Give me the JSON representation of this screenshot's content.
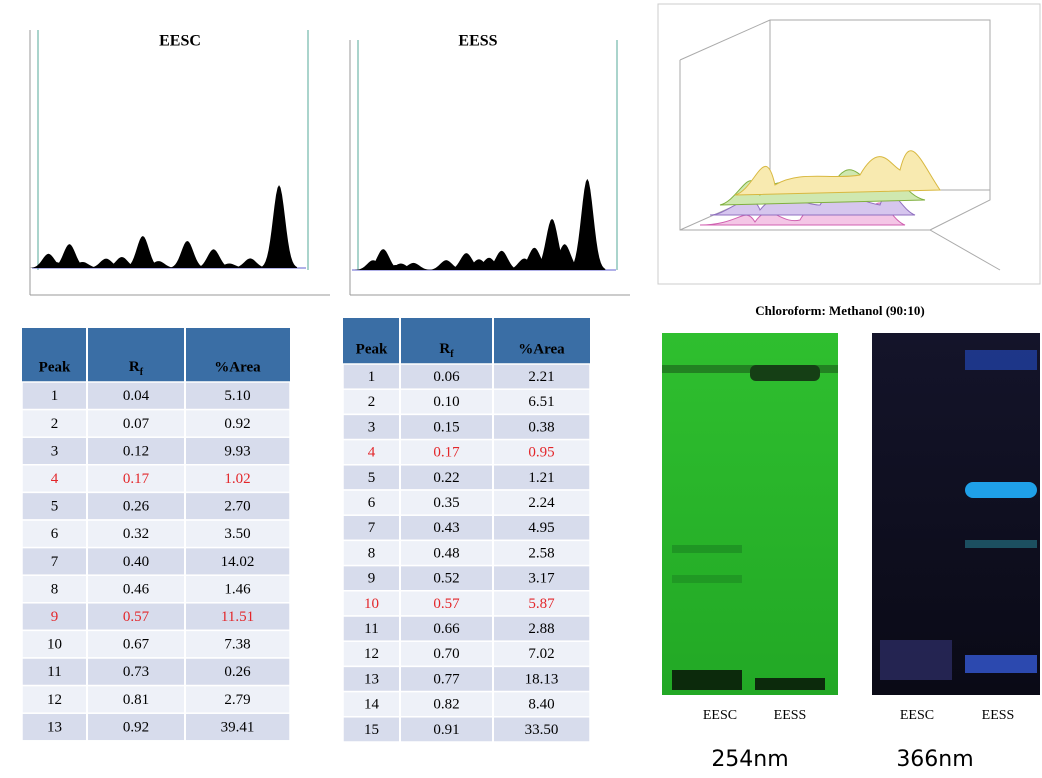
{
  "eesc": {
    "title": "EESC",
    "header": [
      "Peak",
      "R",
      "f",
      "%Area"
    ],
    "highlight_color": "#e3262a",
    "highlight_peaks": [
      "4",
      "9"
    ],
    "rows": [
      [
        "1",
        "0.04",
        "5.10"
      ],
      [
        "2",
        "0.07",
        "0.92"
      ],
      [
        "3",
        "0.12",
        "9.93"
      ],
      [
        "4",
        "0.17",
        "1.02"
      ],
      [
        "5",
        "0.26",
        "2.70"
      ],
      [
        "6",
        "0.32",
        "3.50"
      ],
      [
        "7",
        "0.40",
        "14.02"
      ],
      [
        "8",
        "0.46",
        "1.46"
      ],
      [
        "9",
        "0.57",
        "11.51"
      ],
      [
        "10",
        "0.67",
        "7.38"
      ],
      [
        "11",
        "0.73",
        "0.26"
      ],
      [
        "12",
        "0.81",
        "2.79"
      ],
      [
        "13",
        "0.92",
        "39.41"
      ]
    ]
  },
  "eess": {
    "title": "EESS",
    "header": [
      "Peak",
      "R",
      "f",
      "%Area"
    ],
    "highlight_color": "#e3262a",
    "highlight_peaks": [
      "4",
      "10"
    ],
    "rows": [
      [
        "1",
        "0.06",
        "2.21"
      ],
      [
        "2",
        "0.10",
        "6.51"
      ],
      [
        "3",
        "0.15",
        "0.38"
      ],
      [
        "4",
        "0.17",
        "0.95"
      ],
      [
        "5",
        "0.22",
        "1.21"
      ],
      [
        "6",
        "0.35",
        "2.24"
      ],
      [
        "7",
        "0.43",
        "4.95"
      ],
      [
        "8",
        "0.48",
        "2.58"
      ],
      [
        "9",
        "0.52",
        "3.17"
      ],
      [
        "10",
        "0.57",
        "5.87"
      ],
      [
        "11",
        "0.66",
        "2.88"
      ],
      [
        "12",
        "0.70",
        "7.02"
      ],
      [
        "13",
        "0.77",
        "18.13"
      ],
      [
        "14",
        "0.82",
        "8.40"
      ],
      [
        "15",
        "0.91",
        "33.50"
      ]
    ]
  },
  "tlc": {
    "title": "Chloroform: Methanol (90:10)",
    "plate_254": {
      "lanes": [
        "EESC",
        "EESS"
      ],
      "label": "254nm"
    },
    "plate_366": {
      "lanes": [
        "EESC",
        "EESS"
      ],
      "label": "366nm"
    }
  }
}
